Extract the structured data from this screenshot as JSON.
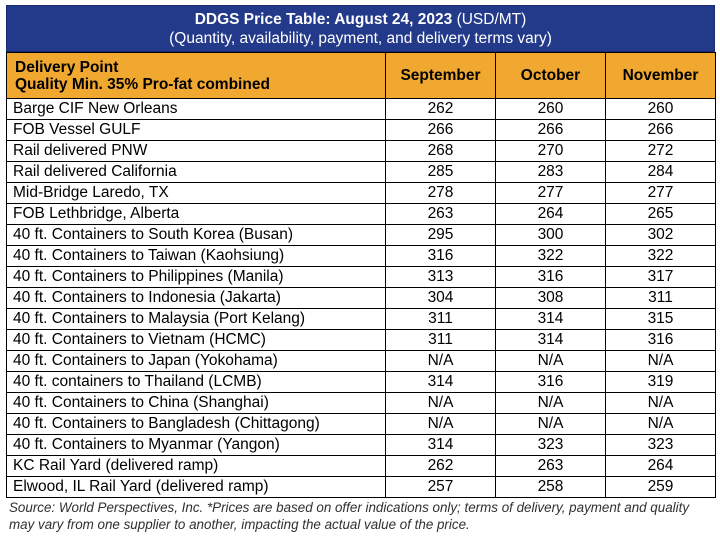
{
  "title": {
    "bold": "DDGS Price Table: August 24, 2023",
    "unit": "(USD/MT)",
    "subtitle": "(Quantity, availability, payment, and delivery terms vary)"
  },
  "header": {
    "delivery_line1": "Delivery Point",
    "delivery_line2": "Quality Min. 35% Pro-fat combined",
    "months": [
      "September",
      "October",
      "November"
    ]
  },
  "rows": [
    {
      "point": "Barge CIF New Orleans",
      "sep": "262",
      "oct": "260",
      "nov": "260"
    },
    {
      "point": "FOB Vessel GULF",
      "sep": "266",
      "oct": "266",
      "nov": "266"
    },
    {
      "point": "Rail delivered PNW",
      "sep": "268",
      "oct": "270",
      "nov": "272"
    },
    {
      "point": "Rail delivered California",
      "sep": "285",
      "oct": "283",
      "nov": "284"
    },
    {
      "point": "Mid-Bridge Laredo, TX",
      "sep": "278",
      "oct": "277",
      "nov": "277"
    },
    {
      "point": "FOB Lethbridge, Alberta",
      "sep": "263",
      "oct": "264",
      "nov": "265"
    },
    {
      "point": "40 ft. Containers to South Korea (Busan)",
      "sep": "295",
      "oct": "300",
      "nov": "302"
    },
    {
      "point": "40 ft. Containers to Taiwan (Kaohsiung)",
      "sep": "316",
      "oct": "322",
      "nov": "322"
    },
    {
      "point": "40 ft. Containers to Philippines (Manila)",
      "sep": "313",
      "oct": "316",
      "nov": "317"
    },
    {
      "point": "40 ft. Containers to Indonesia (Jakarta)",
      "sep": "304",
      "oct": "308",
      "nov": "311"
    },
    {
      "point": "40 ft. Containers to Malaysia (Port Kelang)",
      "sep": "311",
      "oct": "314",
      "nov": "315"
    },
    {
      "point": "40 ft. Containers to Vietnam (HCMC)",
      "sep": "311",
      "oct": "314",
      "nov": "316"
    },
    {
      "point": "40 ft. Containers to Japan (Yokohama)",
      "sep": "N/A",
      "oct": "N/A",
      "nov": "N/A"
    },
    {
      "point": "40 ft. containers to Thailand (LCMB)",
      "sep": "314",
      "oct": "316",
      "nov": "319"
    },
    {
      "point": "40 ft. Containers to China (Shanghai)",
      "sep": "N/A",
      "oct": "N/A",
      "nov": "N/A"
    },
    {
      "point": "40 ft. Containers to Bangladesh (Chittagong)",
      "sep": "N/A",
      "oct": "N/A",
      "nov": "N/A"
    },
    {
      "point": "40 ft. Containers to Myanmar (Yangon)",
      "sep": "314",
      "oct": "323",
      "nov": "323"
    },
    {
      "point": "KC Rail Yard (delivered ramp)",
      "sep": "262",
      "oct": "263",
      "nov": "264"
    },
    {
      "point": "Elwood, IL Rail Yard (delivered ramp)",
      "sep": "257",
      "oct": "258",
      "nov": "259"
    }
  ],
  "source_note": "Source: World Perspectives, Inc. *Prices are based on offer indications only; terms of delivery, payment and quality may vary from one supplier to another, impacting the actual value of the price.",
  "colors": {
    "title_bg": "#23398a",
    "header_bg": "#f0a830"
  }
}
